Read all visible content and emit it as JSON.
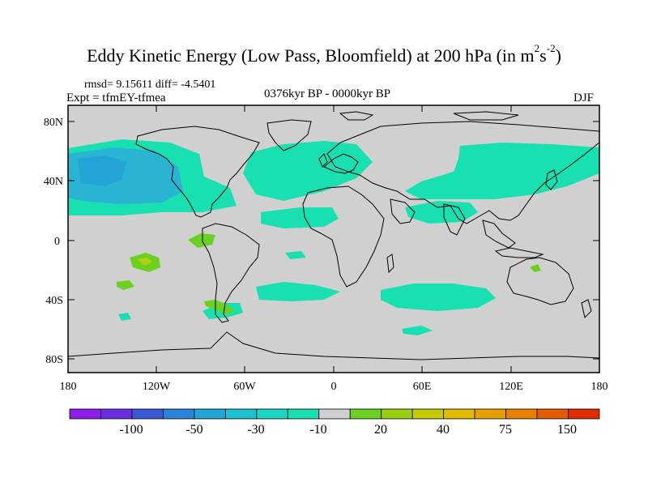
{
  "title": {
    "main": "Eddy Kinetic Energy (Low Pass, Bloomfield) at 200 hPa (in m",
    "sup1": "2",
    "mid": "s",
    "sup2": "-2",
    "end": ")"
  },
  "stats": "rmsd= 9.15611 diff= -4.5401",
  "experiment": "Expt = tfmEY-tfmea",
  "period": "0376kyr BP - 0000kyr BP",
  "season": "DJF",
  "axes": {
    "y_ticks": [
      "80N",
      "40N",
      "0",
      "40S",
      "80S"
    ],
    "x_ticks": [
      "180",
      "120W",
      "60W",
      "0",
      "60E",
      "120E",
      "180"
    ]
  },
  "colorbar": {
    "labels": [
      "-100",
      "-50",
      "-30",
      "-10",
      "20",
      "40",
      "75",
      "150"
    ],
    "colors": [
      "#8c1ee8",
      "#6a2ee0",
      "#3a57d6",
      "#2c84d8",
      "#23a4d6",
      "#1cc0d0",
      "#1ad6c4",
      "#18e0b0",
      "#d0d0d0",
      "#6cd020",
      "#98d010",
      "#c4cc08",
      "#e0bc00",
      "#e8a000",
      "#e88000",
      "#e45c00",
      "#e02c00"
    ]
  },
  "colors": {
    "land_bg": "#d0d0d0",
    "cyan": "#18e0b0",
    "blue": "#2ab4d4",
    "green": "#6cd020",
    "yellow_green": "#b0d010"
  }
}
